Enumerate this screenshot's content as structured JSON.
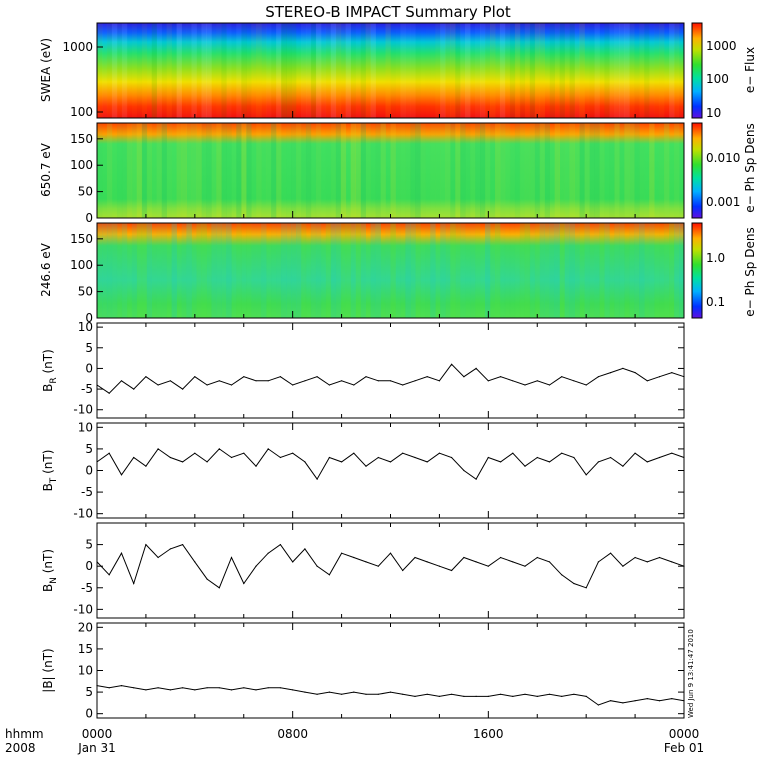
{
  "figure": {
    "title": "STEREO-B IMPACT Summary Plot",
    "x_corner_top": "hhmm",
    "x_corner_bottom": "2008",
    "timestamp": "Wed Jun  9 13:41:47 2010"
  },
  "chart_data": [
    {
      "type": "heatmap",
      "id": "swea",
      "ylabel": "SWEA (eV)",
      "yscale": "log",
      "ylim": [
        100,
        2200
      ],
      "yticks": [
        100,
        1000
      ],
      "ytick_labels": [
        "100",
        "1000"
      ],
      "colorbar": {
        "label": "e− Flux",
        "scale": "log",
        "ticks": [
          "10",
          "100",
          "1000"
        ]
      },
      "description_levels": {
        "low_energy": "red",
        "mid_energy": "yellow-green",
        "high_energy": "blue"
      }
    },
    {
      "type": "heatmap",
      "id": "pad650",
      "ylabel": "650.7 eV",
      "ylim": [
        0,
        180
      ],
      "yticks": [
        0,
        50,
        100,
        150
      ],
      "colorbar": {
        "label": "e− Ph Sp Dens",
        "scale": "log",
        "ticks": [
          "0.001",
          "0.010"
        ]
      }
    },
    {
      "type": "heatmap",
      "id": "pad246",
      "ylabel": "246.6 eV",
      "ylim": [
        0,
        180
      ],
      "yticks": [
        0,
        50,
        100,
        150
      ],
      "colorbar": {
        "label": "e− Ph Sp Dens",
        "scale": "log",
        "ticks": [
          "0.1",
          "1.0"
        ]
      }
    },
    {
      "type": "line",
      "id": "br",
      "ylabel": "B",
      "ylabel_sub": "R",
      "ylabel_unit": " (nT)",
      "ylim": [
        -12,
        11
      ],
      "yticks": [
        -10,
        -5,
        0,
        5,
        10
      ],
      "x": [
        0,
        0.5,
        1,
        1.5,
        2,
        2.5,
        3,
        3.5,
        4,
        4.5,
        5,
        5.5,
        6,
        6.5,
        7,
        7.5,
        8,
        8.5,
        9,
        9.5,
        10,
        10.5,
        11,
        11.5,
        12,
        12.5,
        13,
        13.5,
        14,
        14.5,
        15,
        15.5,
        16,
        16.5,
        17,
        17.5,
        18,
        18.5,
        19,
        19.5,
        20,
        20.5,
        21,
        21.5,
        22,
        22.5,
        23,
        23.5,
        24
      ],
      "values": [
        -4,
        -6,
        -3,
        -5,
        -2,
        -4,
        -3,
        -5,
        -2,
        -4,
        -3,
        -4,
        -2,
        -3,
        -3,
        -2,
        -4,
        -3,
        -2,
        -4,
        -3,
        -4,
        -2,
        -3,
        -3,
        -4,
        -3,
        -2,
        -3,
        1,
        -2,
        0,
        -3,
        -2,
        -3,
        -4,
        -3,
        -4,
        -2,
        -3,
        -4,
        -2,
        -1,
        0,
        -1,
        -3,
        -2,
        -1,
        -2
      ]
    },
    {
      "type": "line",
      "id": "bt",
      "ylabel": "B",
      "ylabel_sub": "T",
      "ylabel_unit": " (nT)",
      "ylim": [
        -11,
        11
      ],
      "yticks": [
        -10,
        -5,
        0,
        5,
        10
      ],
      "x": [
        0,
        0.5,
        1,
        1.5,
        2,
        2.5,
        3,
        3.5,
        4,
        4.5,
        5,
        5.5,
        6,
        6.5,
        7,
        7.5,
        8,
        8.5,
        9,
        9.5,
        10,
        10.5,
        11,
        11.5,
        12,
        12.5,
        13,
        13.5,
        14,
        14.5,
        15,
        15.5,
        16,
        16.5,
        17,
        17.5,
        18,
        18.5,
        19,
        19.5,
        20,
        20.5,
        21,
        21.5,
        22,
        22.5,
        23,
        23.5,
        24
      ],
      "values": [
        2,
        4,
        -1,
        3,
        1,
        5,
        3,
        2,
        4,
        2,
        5,
        3,
        4,
        1,
        5,
        3,
        4,
        2,
        -2,
        3,
        2,
        4,
        1,
        3,
        2,
        4,
        3,
        2,
        4,
        3,
        0,
        -2,
        3,
        2,
        4,
        1,
        3,
        2,
        4,
        3,
        -1,
        2,
        3,
        1,
        4,
        2,
        3,
        4,
        3
      ]
    },
    {
      "type": "line",
      "id": "bn",
      "ylabel": "B",
      "ylabel_sub": "N",
      "ylabel_unit": " (nT)",
      "ylim": [
        -12,
        10
      ],
      "yticks": [
        -10,
        -5,
        0,
        5
      ],
      "x": [
        0,
        0.5,
        1,
        1.5,
        2,
        2.5,
        3,
        3.5,
        4,
        4.5,
        5,
        5.5,
        6,
        6.5,
        7,
        7.5,
        8,
        8.5,
        9,
        9.5,
        10,
        10.5,
        11,
        11.5,
        12,
        12.5,
        13,
        13.5,
        14,
        14.5,
        15,
        15.5,
        16,
        16.5,
        17,
        17.5,
        18,
        18.5,
        19,
        19.5,
        20,
        20.5,
        21,
        21.5,
        22,
        22.5,
        23,
        23.5,
        24
      ],
      "values": [
        1,
        -2,
        3,
        -4,
        5,
        2,
        4,
        5,
        1,
        -3,
        -5,
        2,
        -4,
        0,
        3,
        5,
        1,
        4,
        0,
        -2,
        3,
        2,
        1,
        0,
        3,
        -1,
        2,
        1,
        0,
        -1,
        2,
        1,
        0,
        2,
        1,
        0,
        2,
        1,
        -2,
        -4,
        -5,
        1,
        3,
        0,
        2,
        1,
        2,
        1,
        0
      ]
    },
    {
      "type": "line",
      "id": "bmag",
      "ylabel": "|B| (nT)",
      "ylim": [
        -1,
        21
      ],
      "yticks": [
        0,
        5,
        10,
        15,
        20
      ],
      "x": [
        0,
        0.5,
        1,
        1.5,
        2,
        2.5,
        3,
        3.5,
        4,
        4.5,
        5,
        5.5,
        6,
        6.5,
        7,
        7.5,
        8,
        8.5,
        9,
        9.5,
        10,
        10.5,
        11,
        11.5,
        12,
        12.5,
        13,
        13.5,
        14,
        14.5,
        15,
        15.5,
        16,
        16.5,
        17,
        17.5,
        18,
        18.5,
        19,
        19.5,
        20,
        20.5,
        21,
        21.5,
        22,
        22.5,
        23,
        23.5,
        24
      ],
      "values": [
        6.5,
        6,
        6.5,
        6,
        5.5,
        6,
        5.5,
        6,
        5.5,
        6,
        6,
        5.5,
        6,
        5.5,
        6,
        6,
        5.5,
        5,
        4.5,
        5,
        4.5,
        5,
        4.5,
        4.5,
        5,
        4.5,
        4,
        4.5,
        4,
        4.5,
        4,
        4,
        4,
        4.5,
        4,
        4.5,
        4,
        4.5,
        4,
        4.5,
        4,
        2,
        3,
        2.5,
        3,
        3.5,
        3,
        3.5,
        3
      ]
    }
  ],
  "xaxis": {
    "tick_labels_top": [
      "0000",
      "0800",
      "1600",
      "0000"
    ],
    "tick_labels_bottom": [
      "Jan 31",
      "",
      "",
      "Feb 01"
    ]
  }
}
